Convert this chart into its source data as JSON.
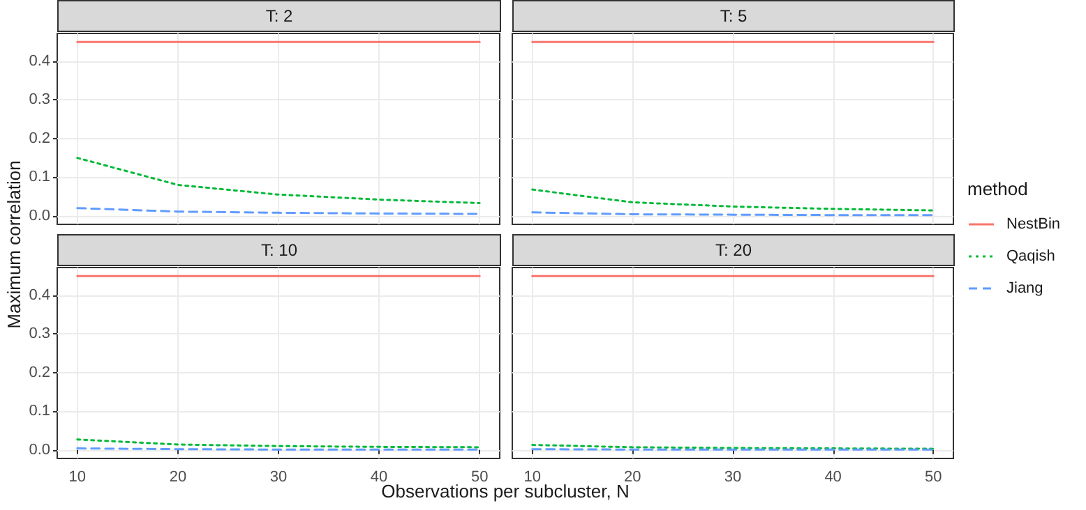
{
  "chart_data": [
    {
      "type": "line",
      "title": "T: 2",
      "ylabel": "Maximum correlation",
      "legend": "right",
      "legend_title": "method",
      "x": [
        10,
        20,
        30,
        40,
        50
      ],
      "xlim": [
        8,
        52
      ],
      "xticks": [
        10,
        20,
        30,
        40,
        50
      ],
      "ylim": [
        -0.022,
        0.472
      ],
      "yticks": [
        {
          "value": 0,
          "label": "0.0"
        },
        0.1,
        0.2,
        0.3,
        0.4
      ],
      "grid": true,
      "marker": "none",
      "tick_labels": "y",
      "series": [
        {
          "name": "NestBin",
          "color": "#f8766d",
          "line_style": "solid",
          "values": [
            0.45,
            0.45,
            0.45,
            0.45,
            0.45
          ]
        },
        {
          "name": "Qaqish",
          "color": "#00ba38",
          "line_style": "dotted",
          "values": [
            0.15,
            0.08,
            0.055,
            0.042,
            0.033
          ]
        },
        {
          "name": "Jiang",
          "color": "#619cff",
          "line_style": "dashed",
          "values": [
            0.02,
            0.011,
            0.008,
            0.006,
            0.005
          ]
        }
      ]
    },
    {
      "type": "line",
      "title": "T: 5",
      "x": [
        10,
        20,
        30,
        40,
        50
      ],
      "xlim": [
        8,
        52
      ],
      "xticks": [
        10,
        20,
        30,
        40,
        50
      ],
      "ylim": [
        -0.022,
        0.472
      ],
      "yticks": [
        0,
        0.1,
        0.2,
        0.3,
        0.4
      ],
      "grid": true,
      "marker": "none",
      "tick_labels": false,
      "series": [
        {
          "color": "#f8766d",
          "line_style": "solid",
          "values": [
            0.45,
            0.45,
            0.45,
            0.45,
            0.45
          ]
        },
        {
          "color": "#00ba38",
          "line_style": "dotted",
          "values": [
            0.068,
            0.035,
            0.024,
            0.018,
            0.014
          ]
        },
        {
          "color": "#619cff",
          "line_style": "dashed",
          "values": [
            0.009,
            0.004,
            0.003,
            0.002,
            0.002
          ]
        }
      ]
    },
    {
      "type": "line",
      "title": "T: 10",
      "xlabel": "Observations per subcluster, N",
      "x": [
        10,
        20,
        30,
        40,
        50
      ],
      "xlim": [
        8,
        52
      ],
      "xticks": [
        10,
        20,
        30,
        40,
        50
      ],
      "ylim": [
        -0.022,
        0.472
      ],
      "yticks": [
        {
          "value": 0,
          "label": "0.0"
        },
        0.1,
        0.2,
        0.3,
        0.4
      ],
      "grid": true,
      "marker": "none",
      "series": [
        {
          "color": "#f8766d",
          "line_style": "solid",
          "values": [
            0.45,
            0.45,
            0.45,
            0.45,
            0.45
          ]
        },
        {
          "color": "#00ba38",
          "line_style": "dotted",
          "values": [
            0.027,
            0.014,
            0.01,
            0.008,
            0.007
          ]
        },
        {
          "color": "#619cff",
          "line_style": "dashed",
          "values": [
            0.004,
            0.002,
            0.001,
            0.001,
            0.001
          ]
        }
      ]
    },
    {
      "type": "line",
      "title": "T: 20",
      "x": [
        10,
        20,
        30,
        40,
        50
      ],
      "xlim": [
        8,
        52
      ],
      "xticks": [
        10,
        20,
        30,
        40,
        50
      ],
      "ylim": [
        -0.022,
        0.472
      ],
      "yticks": [
        0,
        0.1,
        0.2,
        0.3,
        0.4
      ],
      "grid": true,
      "marker": "none",
      "tick_labels": "x",
      "series": [
        {
          "color": "#f8766d",
          "line_style": "solid",
          "values": [
            0.45,
            0.45,
            0.45,
            0.45,
            0.45
          ]
        },
        {
          "color": "#00ba38",
          "line_style": "dotted",
          "values": [
            0.013,
            0.007,
            0.005,
            0.004,
            0.003
          ]
        },
        {
          "color": "#619cff",
          "line_style": "dashed",
          "values": [
            0.002,
            0.001,
            0.001,
            0.001,
            0.001
          ]
        }
      ]
    }
  ]
}
